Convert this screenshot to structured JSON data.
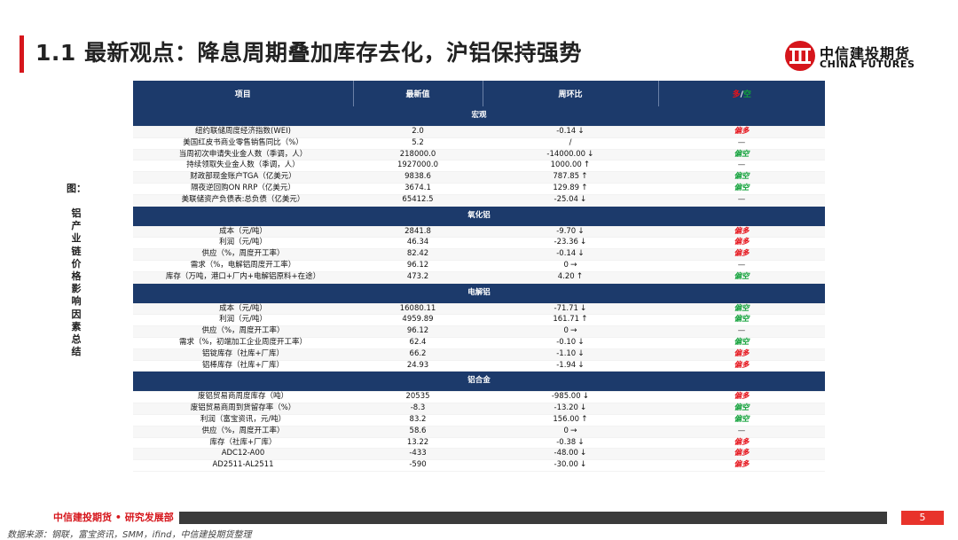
{
  "header": {
    "title": "1.1 最新观点：降息周期叠加库存去化，沪铝保持强势",
    "logo_cn": "中信建投期货",
    "logo_en": "CHINA FUTURES",
    "accent_color": "#d6161c"
  },
  "figure": {
    "caption": "图：",
    "label_chars": [
      "铝",
      "产",
      "业",
      "链",
      "价",
      "格",
      "影",
      "响",
      "因",
      "素",
      "总",
      "结"
    ]
  },
  "table": {
    "headers": {
      "item": "项目",
      "latest": "最新值",
      "wow": "周环比",
      "signal_a": "多",
      "signal_sep": "/",
      "signal_b": "空"
    },
    "sections": [
      {
        "name": "宏观",
        "rows": [
          {
            "item": "纽约联储周度经济指数(WEI)",
            "value": "2.0",
            "change": "-0.14",
            "arrow": "↓",
            "signal": "偏多",
            "tone": "red"
          },
          {
            "item": "美国红皮书商业零售销售同比（%）",
            "value": "5.2",
            "change": "/",
            "arrow": "",
            "signal": "—",
            "tone": "none"
          },
          {
            "item": "当周初次申请失业金人数（季调，人）",
            "value": "218000.0",
            "change": "-14000.00",
            "arrow": "↓",
            "signal": "偏空",
            "tone": "green"
          },
          {
            "item": "持续领取失业金人数（季调，人）",
            "value": "1927000.0",
            "change": "1000.00",
            "arrow": "↑",
            "signal": "—",
            "tone": "none"
          },
          {
            "item": "财政部现金账户TGA（亿美元）",
            "value": "9838.6",
            "change": "787.85",
            "arrow": "↑",
            "signal": "偏空",
            "tone": "green"
          },
          {
            "item": "隔夜逆回购ON RRP（亿美元）",
            "value": "3674.1",
            "change": "129.89",
            "arrow": "↑",
            "signal": "偏空",
            "tone": "green"
          },
          {
            "item": "美联储资产负债表:总负债（亿美元）",
            "value": "65412.5",
            "change": "-25.04",
            "arrow": "↓",
            "signal": "—",
            "tone": "none"
          }
        ]
      },
      {
        "name": "氧化铝",
        "rows": [
          {
            "item": "成本（元/吨）",
            "value": "2841.8",
            "change": "-9.70",
            "arrow": "↓",
            "signal": "偏多",
            "tone": "red"
          },
          {
            "item": "利润（元/吨）",
            "value": "46.34",
            "change": "-23.36",
            "arrow": "↓",
            "signal": "偏多",
            "tone": "red"
          },
          {
            "item": "供应（%，周度开工率）",
            "value": "82.42",
            "change": "-0.14",
            "arrow": "↓",
            "signal": "偏多",
            "tone": "red"
          },
          {
            "item": "需求（%，电解铝周度开工率）",
            "value": "96.12",
            "change": "0",
            "arrow": "→",
            "signal": "—",
            "tone": "none"
          },
          {
            "item": "库存（万吨，港口+厂内+电解铝原料+在途）",
            "value": "473.2",
            "change": "4.20",
            "arrow": "↑",
            "signal": "偏空",
            "tone": "green"
          }
        ]
      },
      {
        "name": "电解铝",
        "rows": [
          {
            "item": "成本（元/吨）",
            "value": "16080.11",
            "change": "-71.71",
            "arrow": "↓",
            "signal": "偏空",
            "tone": "green"
          },
          {
            "item": "利润（元/吨）",
            "value": "4959.89",
            "change": "161.71",
            "arrow": "↑",
            "signal": "偏空",
            "tone": "green"
          },
          {
            "item": "供应（%，周度开工率）",
            "value": "96.12",
            "change": "0",
            "arrow": "→",
            "signal": "—",
            "tone": "none"
          },
          {
            "item": "需求（%，初端加工企业周度开工率）",
            "value": "62.4",
            "change": "-0.10",
            "arrow": "↓",
            "signal": "偏空",
            "tone": "green"
          },
          {
            "item": "铝锭库存（社库+厂库）",
            "value": "66.2",
            "change": "-1.10",
            "arrow": "↓",
            "signal": "偏多",
            "tone": "red"
          },
          {
            "item": "铝棒库存（社库+厂库）",
            "value": "24.93",
            "change": "-1.94",
            "arrow": "↓",
            "signal": "偏多",
            "tone": "red"
          }
        ]
      },
      {
        "name": "铝合金",
        "rows": [
          {
            "item": "废铝贸易商周度库存（吨）",
            "value": "20535",
            "change": "-985.00",
            "arrow": "↓",
            "signal": "偏多",
            "tone": "red"
          },
          {
            "item": "废铝贸易商周到货留存率（%）",
            "value": "-8.3",
            "change": "-13.20",
            "arrow": "↓",
            "signal": "偏空",
            "tone": "green"
          },
          {
            "item": "利润（富宝资讯，元/吨）",
            "value": "83.2",
            "change": "156.00",
            "arrow": "↑",
            "signal": "偏空",
            "tone": "green"
          },
          {
            "item": "供应（%，周度开工率）",
            "value": "58.6",
            "change": "0",
            "arrow": "→",
            "signal": "—",
            "tone": "none"
          },
          {
            "item": "库存（社库+厂库）",
            "value": "13.22",
            "change": "-0.38",
            "arrow": "↓",
            "signal": "偏多",
            "tone": "red"
          },
          {
            "item": "ADC12-A00",
            "value": "-433",
            "change": "-48.00",
            "arrow": "↓",
            "signal": "偏多",
            "tone": "red"
          },
          {
            "item": "AD2511-AL2511",
            "value": "-590",
            "change": "-30.00",
            "arrow": "↓",
            "signal": "偏多",
            "tone": "red"
          }
        ]
      }
    ],
    "colors": {
      "header_bg": "#1c3a6b",
      "bullish": "#e6131b",
      "bearish": "#11a13a"
    }
  },
  "footer": {
    "brand": "中信建投期货 • 研究发展部",
    "page": "5",
    "source": "数据来源：钢联，富宝资讯，SMM，ifind，中信建投期货整理"
  }
}
